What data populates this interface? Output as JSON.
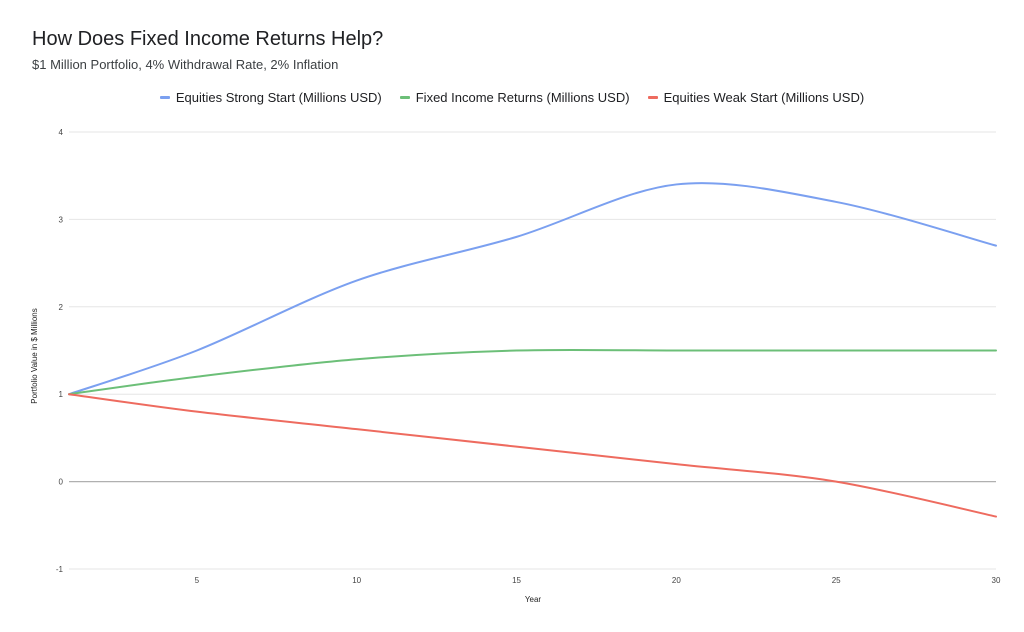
{
  "colors": {
    "blue": "#7ba0f0",
    "green": "#6cbf78",
    "red": "#ee6b5f",
    "grid": "#e6e6e6",
    "zero": "#b0b0b0"
  },
  "chart_data": {
    "type": "line",
    "title": "How Does Fixed Income Returns Help?",
    "subtitle": "$1 Million Portfolio, 4% Withdrawal Rate, 2% Inflation",
    "xlabel": "Year",
    "ylabel": "Portfolio Value in $ Millions",
    "xlim": [
      1,
      30
    ],
    "ylim": [
      -1,
      4
    ],
    "x_ticks": [
      5,
      10,
      15,
      20,
      25,
      30
    ],
    "y_ticks": [
      -1,
      0,
      1,
      2,
      3,
      4
    ],
    "legend_position": "top",
    "grid": true,
    "series": [
      {
        "name": "Equities Strong Start (Millions USD)",
        "color": "#7ba0f0",
        "x": [
          1,
          5,
          10,
          15,
          20,
          25,
          30
        ],
        "values": [
          1.0,
          1.5,
          2.3,
          2.8,
          3.4,
          3.2,
          2.7
        ]
      },
      {
        "name": "Fixed Income Returns (Millions USD)",
        "color": "#6cbf78",
        "x": [
          1,
          5,
          10,
          15,
          20,
          25,
          30
        ],
        "values": [
          1.0,
          1.2,
          1.4,
          1.5,
          1.5,
          1.5,
          1.5
        ]
      },
      {
        "name": "Equities Weak Start (Millions USD)",
        "color": "#ee6b5f",
        "x": [
          1,
          5,
          10,
          15,
          20,
          25,
          30
        ],
        "values": [
          1.0,
          0.8,
          0.6,
          0.4,
          0.2,
          0.0,
          -0.4
        ]
      }
    ]
  }
}
